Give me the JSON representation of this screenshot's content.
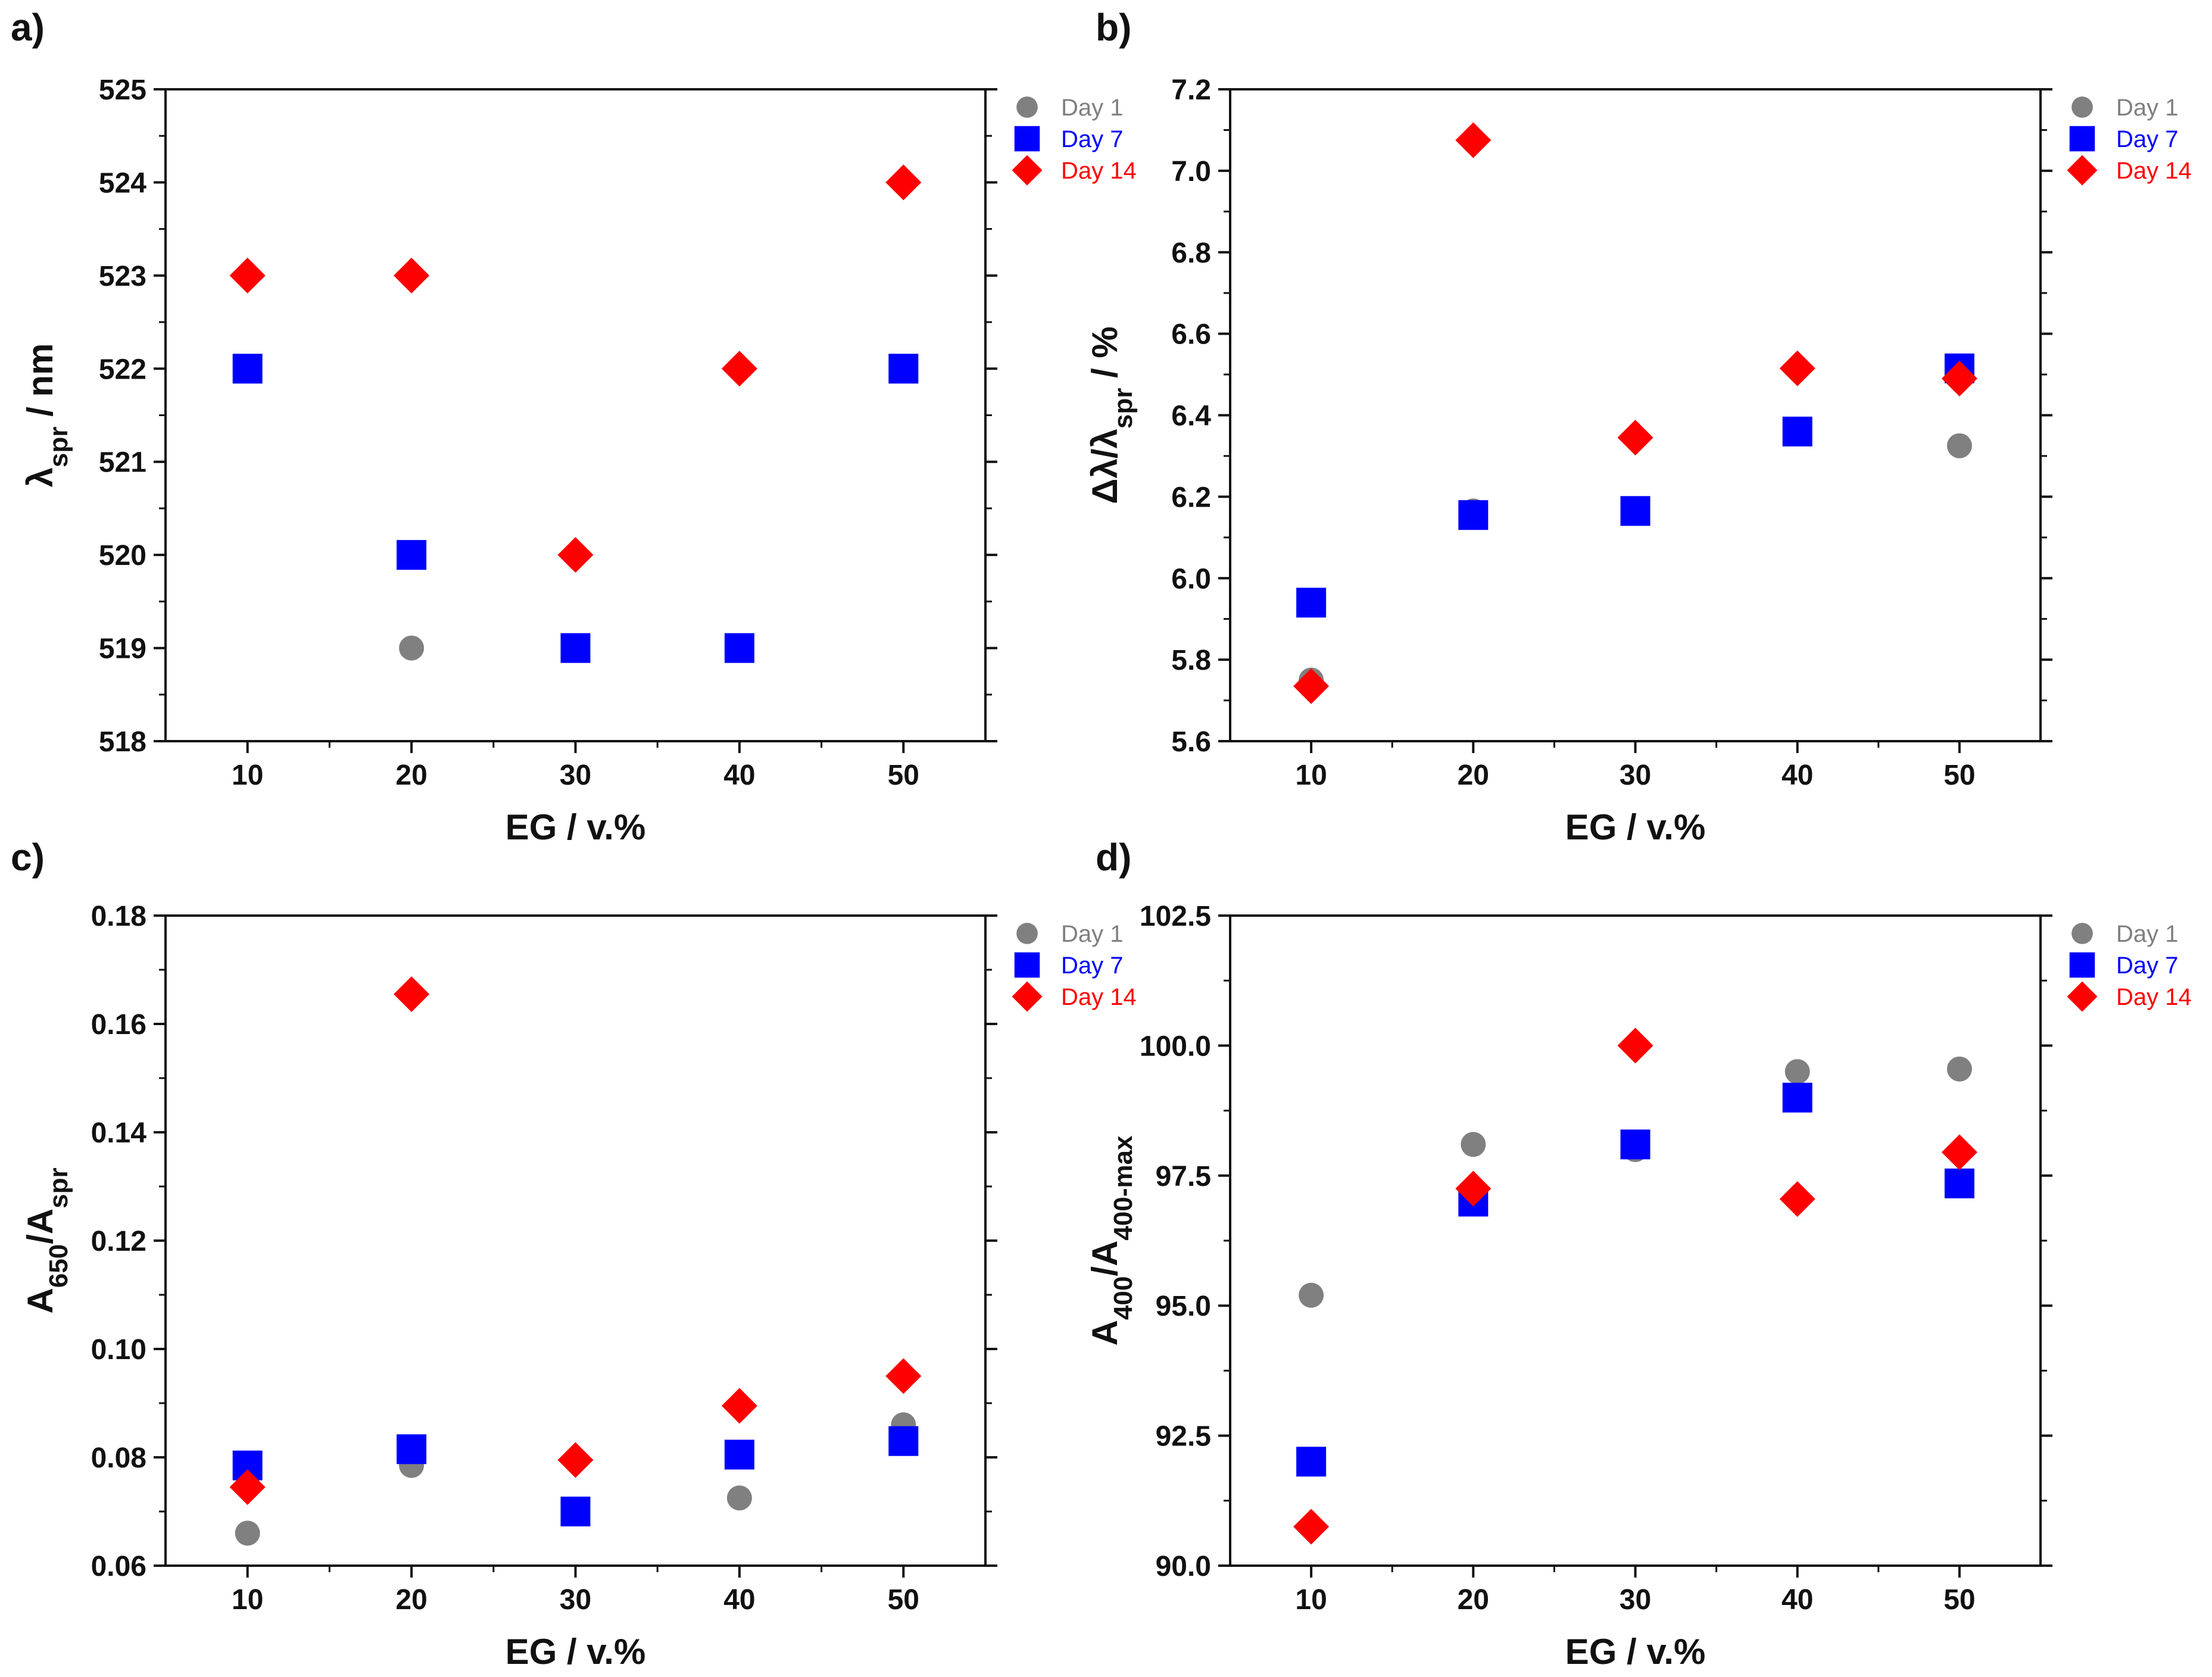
{
  "colors": {
    "day1": "#808080",
    "day7": "#0000FF",
    "day14": "#FF0000",
    "axis": "#111111"
  },
  "legend": [
    {
      "label": "Day 1",
      "marker": "circle",
      "color": "#808080"
    },
    {
      "label": "Day 7",
      "marker": "square",
      "color": "#0000FF"
    },
    {
      "label": "Day 14",
      "marker": "diamond",
      "color": "#FF0000"
    }
  ],
  "chart_data": [
    {
      "type": "scatter",
      "panel": "a)",
      "xlabel": "EG / v.%",
      "ylabel": {
        "base": "λ",
        "sub": "spr",
        "rest": " / nm"
      },
      "x": [
        10,
        20,
        30,
        40,
        50
      ],
      "xlim": [
        5,
        55
      ],
      "xticks": [
        10,
        20,
        30,
        40,
        50
      ],
      "ylim": [
        518,
        525
      ],
      "yticks": [
        518,
        519,
        520,
        521,
        522,
        523,
        524,
        525
      ],
      "ytick_labels": [
        "518",
        "519",
        "520",
        "521",
        "522",
        "523",
        "524",
        "525"
      ],
      "series": [
        {
          "name": "Day 1",
          "values": [
            522,
            519,
            519,
            519,
            522
          ]
        },
        {
          "name": "Day 7",
          "values": [
            522,
            520,
            519,
            519,
            522
          ]
        },
        {
          "name": "Day 14",
          "values": [
            523,
            523,
            520,
            522,
            524
          ]
        }
      ]
    },
    {
      "type": "scatter",
      "panel": "b)",
      "xlabel": "EG / v.%",
      "ylabel": {
        "base": "Δλ/λ",
        "sub": "spr",
        "rest": " / %"
      },
      "x": [
        10,
        20,
        30,
        40,
        50
      ],
      "xlim": [
        5,
        55
      ],
      "xticks": [
        10,
        20,
        30,
        40,
        50
      ],
      "ylim": [
        5.6,
        7.2
      ],
      "yticks": [
        5.6,
        5.8,
        6.0,
        6.2,
        6.4,
        6.6,
        6.8,
        7.0,
        7.2
      ],
      "ytick_labels": [
        "5.6",
        "5.8",
        "6.0",
        "6.2",
        "6.4",
        "6.6",
        "6.8",
        "7.0",
        "7.2"
      ],
      "series": [
        {
          "name": "Day 1",
          "values": [
            5.75,
            6.165,
            6.165,
            6.36,
            6.325
          ]
        },
        {
          "name": "Day 7",
          "values": [
            5.94,
            6.155,
            6.165,
            6.36,
            6.515
          ]
        },
        {
          "name": "Day 14",
          "values": [
            5.735,
            7.075,
            6.345,
            6.515,
            6.49
          ]
        }
      ]
    },
    {
      "type": "scatter",
      "panel": "c)",
      "xlabel": "EG / v.%",
      "ylabel": {
        "base": "A",
        "sub": "650",
        "base2": "/A",
        "sub2": "spr",
        "rest": ""
      },
      "x": [
        10,
        20,
        30,
        40,
        50
      ],
      "xlim": [
        5,
        55
      ],
      "xticks": [
        10,
        20,
        30,
        40,
        50
      ],
      "ylim": [
        0.06,
        0.18
      ],
      "yticks": [
        0.06,
        0.08,
        0.1,
        0.12,
        0.14,
        0.16,
        0.18
      ],
      "ytick_labels": [
        "0.06",
        "0.08",
        "0.10",
        "0.12",
        "0.14",
        "0.16",
        "0.18"
      ],
      "series": [
        {
          "name": "Day 1",
          "values": [
            0.066,
            0.0785,
            0.07,
            0.0725,
            0.086
          ]
        },
        {
          "name": "Day 7",
          "values": [
            0.0785,
            0.0815,
            0.07,
            0.0805,
            0.083
          ]
        },
        {
          "name": "Day 14",
          "values": [
            0.0745,
            0.1655,
            0.0795,
            0.0895,
            0.095
          ]
        }
      ]
    },
    {
      "type": "scatter",
      "panel": "d)",
      "xlabel": "EG / v.%",
      "ylabel": {
        "base": "A",
        "sub": "400",
        "base2": "/A",
        "sub2": "400-max",
        "rest": ""
      },
      "x": [
        10,
        20,
        30,
        40,
        50
      ],
      "xlim": [
        5,
        55
      ],
      "xticks": [
        10,
        20,
        30,
        40,
        50
      ],
      "ylim": [
        90.0,
        102.5
      ],
      "yticks": [
        90.0,
        92.5,
        95.0,
        97.5,
        100.0,
        102.5
      ],
      "ytick_labels": [
        "90.0",
        "92.5",
        "95.0",
        "97.5",
        "100.0",
        "102.5"
      ],
      "series": [
        {
          "name": "Day 1",
          "values": [
            95.2,
            98.1,
            98.0,
            99.5,
            99.55
          ]
        },
        {
          "name": "Day 7",
          "values": [
            92.0,
            97.0,
            98.1,
            99.0,
            97.35
          ]
        },
        {
          "name": "Day 14",
          "values": [
            90.75,
            97.25,
            100.0,
            97.05,
            97.95
          ]
        }
      ]
    }
  ]
}
